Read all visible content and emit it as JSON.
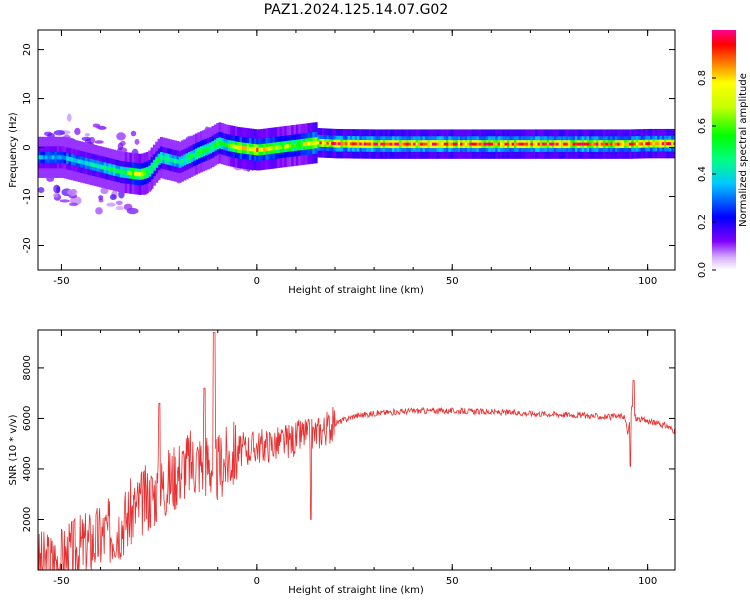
{
  "figure_title": "PAZ1.2024.125.14.07.G02",
  "chart_data": [
    {
      "type": "heatmap",
      "xlabel": "Height of straight line (km)",
      "ylabel": "Frequency (Hz)",
      "xlim": [
        -56,
        107
      ],
      "ylim": [
        -25,
        24
      ],
      "xticks": [
        -50,
        0,
        50,
        100
      ],
      "yticks": [
        -20,
        -10,
        0,
        10,
        20
      ],
      "colorbar": {
        "label": "Normalized spectral amplitude",
        "range": [
          0,
          1
        ],
        "ticks": [
          0.0,
          0.2,
          0.4,
          0.6,
          0.8
        ],
        "tick_labels": [
          "0.0",
          "0.2",
          "0.4",
          "0.6",
          "0.8"
        ],
        "colormap": "rainbow"
      },
      "ridge": {
        "x": [
          -50,
          -45,
          -40,
          -35,
          -30,
          -28,
          -25,
          -20,
          -15,
          -12,
          -10,
          -8,
          -5,
          0,
          5,
          10,
          15,
          20,
          30,
          50,
          80,
          95,
          100,
          107
        ],
        "frequency_hz": [
          -2,
          -3,
          -4,
          -5,
          -5.5,
          -5,
          -2,
          -3,
          -1,
          0,
          1,
          0.5,
          0,
          -0.5,
          0,
          0.5,
          1,
          0.8,
          0.7,
          0.7,
          0.7,
          0.7,
          0.8,
          0.8
        ],
        "peak_amplitude": [
          0.35,
          0.4,
          0.45,
          0.5,
          0.75,
          0.55,
          0.5,
          0.45,
          0.55,
          0.5,
          0.55,
          0.5,
          0.75,
          0.8,
          0.7,
          0.6,
          0.85,
          0.9,
          0.95,
          0.9,
          0.9,
          0.85,
          0.9,
          0.85
        ]
      }
    },
    {
      "type": "line",
      "xlabel": "Height of straight line (km)",
      "ylabel": "SNR (10 * v/v)",
      "xlim": [
        -56,
        107
      ],
      "ylim": [
        0,
        9500
      ],
      "xticks": [
        -50,
        0,
        50,
        100
      ],
      "yticks": [
        2000,
        4000,
        6000,
        8000
      ],
      "color": "#e83030",
      "series": [
        {
          "x": [
            -56,
            -50,
            -45,
            -40,
            -35,
            -30,
            -25,
            -22,
            -20,
            -18,
            -15,
            -12,
            -10,
            -9,
            -8,
            -5,
            0,
            5,
            10,
            12,
            13,
            15,
            20,
            25,
            30,
            35,
            40,
            45,
            50,
            60,
            70,
            80,
            90,
            94,
            95,
            96,
            97,
            100,
            105,
            107
          ],
          "y": [
            200,
            400,
            900,
            1300,
            1800,
            2600,
            3200,
            3600,
            3900,
            4200,
            4300,
            4200,
            4000,
            4200,
            4300,
            4700,
            4900,
            5000,
            5200,
            5400,
            5300,
            5400,
            5800,
            6100,
            6200,
            6250,
            6300,
            6300,
            6300,
            6250,
            6200,
            6150,
            6050,
            6100,
            5400,
            6500,
            6000,
            5900,
            5700,
            5500
          ]
        }
      ]
    }
  ]
}
